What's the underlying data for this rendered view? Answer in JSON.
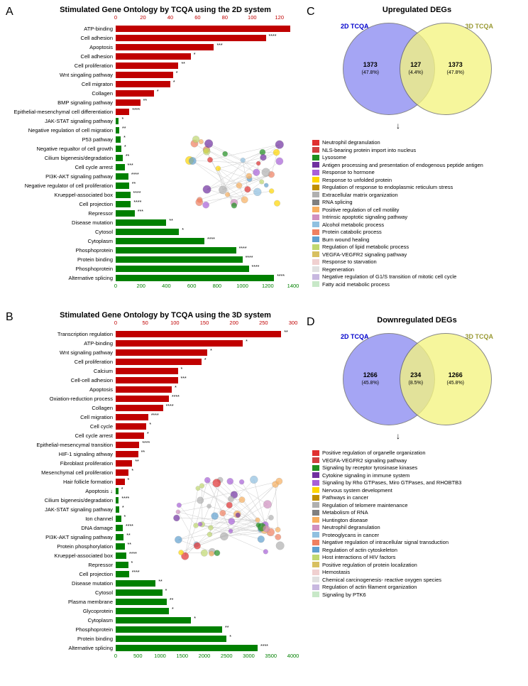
{
  "panelA": {
    "label": "A",
    "title": "Stimulated Gene Ontology by TCQA using the 2D system",
    "top_axis": {
      "max": 130,
      "ticks": [
        0,
        20,
        40,
        60,
        80,
        100,
        120
      ],
      "color": "#c00000"
    },
    "bottom_axis": {
      "max": 1400,
      "ticks": [
        0,
        200,
        400,
        600,
        800,
        1000,
        1200,
        1400
      ],
      "color": "#008000"
    },
    "bars": [
      {
        "label": "ATP-binding",
        "value": 128,
        "scale": "top",
        "color": "#c00000",
        "sig": ""
      },
      {
        "label": "Cell adhesion",
        "value": 110,
        "scale": "top",
        "color": "#c00000",
        "sig": "****"
      },
      {
        "label": "Apoptosis",
        "value": 72,
        "scale": "top",
        "color": "#c00000",
        "sig": "***"
      },
      {
        "label": "Cell adhesion",
        "value": 55,
        "scale": "top",
        "color": "#c00000",
        "sig": "*"
      },
      {
        "label": "Cell proliferation",
        "value": 46,
        "scale": "top",
        "color": "#c00000",
        "sig": "**"
      },
      {
        "label": "Wnt singaling pathway",
        "value": 42,
        "scale": "top",
        "color": "#c00000",
        "sig": "*"
      },
      {
        "label": "Cell migraton",
        "value": 40,
        "scale": "top",
        "color": "#c00000",
        "sig": "*"
      },
      {
        "label": "Collagen",
        "value": 28,
        "scale": "top",
        "color": "#c00000",
        "sig": "*"
      },
      {
        "label": "BMP signaling pathway",
        "value": 18,
        "scale": "top",
        "color": "#c00000",
        "sig": "**"
      },
      {
        "label": "Epithelial-mesenchymal cell differentiation",
        "value": 10,
        "scale": "top",
        "color": "#c00000",
        "sig": "****"
      },
      {
        "label": "JAK-STAT signaling pathway",
        "value": 25,
        "scale": "bottom",
        "color": "#008000",
        "sig": "*"
      },
      {
        "label": "Negative regulation of cell migration",
        "value": 28,
        "scale": "bottom",
        "color": "#008000",
        "sig": "**"
      },
      {
        "label": "P53 pathway",
        "value": 40,
        "scale": "bottom",
        "color": "#008000",
        "sig": "*"
      },
      {
        "label": "Negative regualtor of cell growth",
        "value": 45,
        "scale": "bottom",
        "color": "#008000",
        "sig": "*"
      },
      {
        "label": "Cilium bigenesis/degradation",
        "value": 55,
        "scale": "bottom",
        "color": "#008000",
        "sig": "**"
      },
      {
        "label": "Cell cycle arrest",
        "value": 70,
        "scale": "bottom",
        "color": "#008000",
        "sig": "***"
      },
      {
        "label": "PI3K-AKT signaling pathway",
        "value": 100,
        "scale": "bottom",
        "color": "#008000",
        "sig": "****"
      },
      {
        "label": "Negative regulator of cell proliferation",
        "value": 105,
        "scale": "bottom",
        "color": "#008000",
        "sig": "**"
      },
      {
        "label": "Krueppel-associated box",
        "value": 115,
        "scale": "bottom",
        "color": "#008000",
        "sig": "****"
      },
      {
        "label": "Cell projection",
        "value": 120,
        "scale": "bottom",
        "color": "#008000",
        "sig": "****"
      },
      {
        "label": "Repressor",
        "value": 150,
        "scale": "bottom",
        "color": "#008000",
        "sig": "***"
      },
      {
        "label": "Disease mutation",
        "value": 400,
        "scale": "bottom",
        "color": "#008000",
        "sig": "**"
      },
      {
        "label": "Cytosol",
        "value": 500,
        "scale": "bottom",
        "color": "#008000",
        "sig": "*"
      },
      {
        "label": "Cytoplasm",
        "value": 700,
        "scale": "bottom",
        "color": "#008000",
        "sig": "****"
      },
      {
        "label": "Phosphoprotein",
        "value": 950,
        "scale": "bottom",
        "color": "#008000",
        "sig": "****"
      },
      {
        "label": "Protein binding",
        "value": 1000,
        "scale": "bottom",
        "color": "#008000",
        "sig": "****"
      },
      {
        "label": "Phosphoprotein",
        "value": 1050,
        "scale": "bottom",
        "color": "#008000",
        "sig": "****"
      },
      {
        "label": "Alternative splicing",
        "value": 1250,
        "scale": "bottom",
        "color": "#008000",
        "sig": "****"
      }
    ]
  },
  "panelB": {
    "label": "B",
    "title": "Stimulated Gene Ontology by TCQA using the 3D system",
    "top_axis": {
      "max": 300,
      "ticks": [
        0,
        50,
        100,
        150,
        200,
        250,
        300
      ],
      "color": "#c00000"
    },
    "bottom_axis": {
      "max": 4000,
      "ticks": [
        0,
        500,
        1000,
        1500,
        2000,
        2500,
        3000,
        3500,
        4000
      ],
      "color": "#008000"
    },
    "bars": [
      {
        "label": "Transcription regulation",
        "value": 280,
        "scale": "top",
        "color": "#c00000",
        "sig": "**"
      },
      {
        "label": "ATP-binding",
        "value": 215,
        "scale": "top",
        "color": "#c00000",
        "sig": "*"
      },
      {
        "label": "Wnt signaling pathway",
        "value": 155,
        "scale": "top",
        "color": "#c00000",
        "sig": "*"
      },
      {
        "label": "Cell proliferation",
        "value": 145,
        "scale": "top",
        "color": "#c00000",
        "sig": "*"
      },
      {
        "label": "Calcium",
        "value": 105,
        "scale": "top",
        "color": "#c00000",
        "sig": "*"
      },
      {
        "label": "Cell-cell adhesion",
        "value": 105,
        "scale": "top",
        "color": "#c00000",
        "sig": "***"
      },
      {
        "label": "Apoptosis",
        "value": 95,
        "scale": "top",
        "color": "#c00000",
        "sig": "*"
      },
      {
        "label": "Oxiation-reduction process",
        "value": 90,
        "scale": "top",
        "color": "#c00000",
        "sig": "****"
      },
      {
        "label": "Collagen",
        "value": 80,
        "scale": "top",
        "color": "#c00000",
        "sig": "****"
      },
      {
        "label": "Cell migration",
        "value": 55,
        "scale": "top",
        "color": "#c00000",
        "sig": "****"
      },
      {
        "label": "Cell cycle",
        "value": 52,
        "scale": "top",
        "color": "#c00000",
        "sig": "*"
      },
      {
        "label": "Cell cycle arrest",
        "value": 48,
        "scale": "top",
        "color": "#c00000",
        "sig": "*"
      },
      {
        "label": "Epithelial-mesencymal transition",
        "value": 40,
        "scale": "top",
        "color": "#c00000",
        "sig": "****"
      },
      {
        "label": "HIF-1 signaling athway",
        "value": 38,
        "scale": "top",
        "color": "#c00000",
        "sig": "**"
      },
      {
        "label": "Fibroblast proliferation",
        "value": 28,
        "scale": "top",
        "color": "#c00000",
        "sig": "**"
      },
      {
        "label": "Mesenchymal cell proliferation",
        "value": 22,
        "scale": "top",
        "color": "#c00000",
        "sig": "*"
      },
      {
        "label": "Hair follicle formation",
        "value": 15,
        "scale": "top",
        "color": "#c00000",
        "sig": "*"
      },
      {
        "label": "Apoptosis ↓",
        "value": 60,
        "scale": "bottom",
        "color": "#008000",
        "sig": "*"
      },
      {
        "label": "Cilium bigenesis/degradation",
        "value": 70,
        "scale": "bottom",
        "color": "#008000",
        "sig": "****"
      },
      {
        "label": "JAK-STAT signaling pathway",
        "value": 80,
        "scale": "bottom",
        "color": "#008000",
        "sig": "*"
      },
      {
        "label": "Ion channel",
        "value": 120,
        "scale": "bottom",
        "color": "#008000",
        "sig": "*"
      },
      {
        "label": "DNA damage",
        "value": 160,
        "scale": "bottom",
        "color": "#008000",
        "sig": "****"
      },
      {
        "label": "PI3K-AKT signaling pathway",
        "value": 180,
        "scale": "bottom",
        "color": "#008000",
        "sig": "**"
      },
      {
        "label": "Protein phosphorylation",
        "value": 200,
        "scale": "bottom",
        "color": "#008000",
        "sig": "**"
      },
      {
        "label": "Krueppel-associated box",
        "value": 240,
        "scale": "bottom",
        "color": "#008000",
        "sig": "****"
      },
      {
        "label": "Repressor",
        "value": 280,
        "scale": "bottom",
        "color": "#008000",
        "sig": "*"
      },
      {
        "label": "Cell projection",
        "value": 300,
        "scale": "bottom",
        "color": "#008000",
        "sig": "****"
      },
      {
        "label": "Disease mutation",
        "value": 900,
        "scale": "bottom",
        "color": "#008000",
        "sig": "**"
      },
      {
        "label": "Cytosol",
        "value": 1050,
        "scale": "bottom",
        "color": "#008000",
        "sig": "*"
      },
      {
        "label": "Plasma membrane",
        "value": 1150,
        "scale": "bottom",
        "color": "#008000",
        "sig": "**"
      },
      {
        "label": "Glycoprotein",
        "value": 1200,
        "scale": "bottom",
        "color": "#008000",
        "sig": "*"
      },
      {
        "label": "Cytoplasm",
        "value": 1700,
        "scale": "bottom",
        "color": "#008000",
        "sig": "*"
      },
      {
        "label": "Phosphoprotein",
        "value": 2400,
        "scale": "bottom",
        "color": "#008000",
        "sig": "**"
      },
      {
        "label": "Protein binding",
        "value": 2500,
        "scale": "bottom",
        "color": "#008000",
        "sig": "*"
      },
      {
        "label": "Alternative splicing",
        "value": 3200,
        "scale": "bottom",
        "color": "#008000",
        "sig": "****"
      }
    ]
  },
  "panelC": {
    "label": "C",
    "title": "Upregulated DEGs",
    "left_label": "2D TCQA",
    "left_color": "#0000cc",
    "right_label": "3D TCQA",
    "right_color": "#999933",
    "circle_left": "#8c8cf2",
    "circle_right": "#f4f481",
    "left_count": "1373",
    "left_pct": "(47.8%)",
    "mid_count": "127",
    "mid_pct": "(4.4%)",
    "right_count": "1373",
    "right_pct": "(47.8%)",
    "legend": [
      {
        "c": "#e03030",
        "t": "Neutrophil degranulation"
      },
      {
        "c": "#d04040",
        "t": "NLS-bearing protein import into nucleus"
      },
      {
        "c": "#209020",
        "t": "Lysosome"
      },
      {
        "c": "#7030a0",
        "t": "Antigen processing and presentation of endogenous peptide antigen"
      },
      {
        "c": "#a860d8",
        "t": "Response to hormone"
      },
      {
        "c": "#ffd700",
        "t": "Response to unfolded protein"
      },
      {
        "c": "#c09000",
        "t": "Regulation of response to endoplasmic reticulum stress"
      },
      {
        "c": "#b0b0b0",
        "t": "Extracellular matrix organization"
      },
      {
        "c": "#808080",
        "t": "RNA splicing"
      },
      {
        "c": "#f8b060",
        "t": "Positive regulation of cell motility"
      },
      {
        "c": "#d090c0",
        "t": "Intrinsic apoptotic signaling pathway"
      },
      {
        "c": "#90c0e0",
        "t": "Alcohol metabolic process"
      },
      {
        "c": "#f08060",
        "t": "Protein catabolic process"
      },
      {
        "c": "#60a0d0",
        "t": "Burn wound healing"
      },
      {
        "c": "#c0d870",
        "t": "Regulation of lipid metabolic process"
      },
      {
        "c": "#d8c060",
        "t": "VEGFA-VEGFR2 signaling pathway"
      },
      {
        "c": "#f0d0d0",
        "t": "Response to starvation"
      },
      {
        "c": "#e0e0e0",
        "t": "Regeneration"
      },
      {
        "c": "#c8b8e0",
        "t": "Negative regulation of G1/S transition of mitotic cell cycle"
      },
      {
        "c": "#c8e8c8",
        "t": "Fatty acid metabolic process"
      }
    ]
  },
  "panelD": {
    "label": "D",
    "title": "Downregulated DEGs",
    "left_label": "2D TCQA",
    "left_color": "#0000cc",
    "right_label": "3D TCQA",
    "right_color": "#999933",
    "circle_left": "#8c8cf2",
    "circle_right": "#f4f481",
    "left_count": "1266",
    "left_pct": "(45.8%)",
    "mid_count": "234",
    "mid_pct": "(8.5%)",
    "right_count": "1266",
    "right_pct": "(45.8%)",
    "legend": [
      {
        "c": "#e03030",
        "t": "Positive regulation of organelle organization"
      },
      {
        "c": "#d04040",
        "t": "VEGFA-VEGFR2 signaling pathway"
      },
      {
        "c": "#209020",
        "t": "Signaling by receptor tyrosinase kinases"
      },
      {
        "c": "#7030a0",
        "t": "Cytokine signaling in immune system"
      },
      {
        "c": "#a860d8",
        "t": "Signaling by Rho GTPases, Miro GTPases, and RHOBTB3"
      },
      {
        "c": "#ffd700",
        "t": "Nervous system development"
      },
      {
        "c": "#c09000",
        "t": "Pathways in cancer"
      },
      {
        "c": "#b0b0b0",
        "t": "Regulation of telomere maintenance"
      },
      {
        "c": "#808080",
        "t": "Metabolism of RNA"
      },
      {
        "c": "#f8b060",
        "t": "Huntington disease"
      },
      {
        "c": "#d090c0",
        "t": "Neutrophil degranulation"
      },
      {
        "c": "#90c0e0",
        "t": "Proteoglycans in cancer"
      },
      {
        "c": "#f08060",
        "t": "Negative regulation of intracellular signal transduction"
      },
      {
        "c": "#60a0d0",
        "t": "Regulation of actin cytoskeleton"
      },
      {
        "c": "#c0d870",
        "t": "Host interactions of HIV factors"
      },
      {
        "c": "#d8c060",
        "t": "Positive regulation of protein localization"
      },
      {
        "c": "#f0d0d0",
        "t": "Hemostasis"
      },
      {
        "c": "#e0e0e0",
        "t": "Chemical carcinogenesis- reactive oxygen species"
      },
      {
        "c": "#c8b8e0",
        "t": "Regulation of actin filament organization"
      },
      {
        "c": "#c8e8c8",
        "t": "Signaling by PTK6"
      }
    ]
  }
}
